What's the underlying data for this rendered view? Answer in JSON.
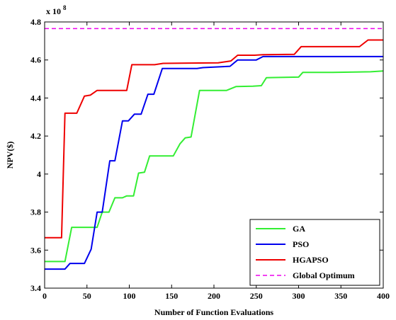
{
  "chart_data": {
    "type": "line",
    "xlabel": "Number of Function Evaluations",
    "ylabel": "NPV($)",
    "exponent_label": "x 10",
    "exponent_power": "8",
    "xlim": [
      0,
      400
    ],
    "ylim": [
      3.4,
      4.8
    ],
    "x_ticks": [
      "0",
      "50",
      "100",
      "150",
      "200",
      "250",
      "300",
      "350",
      "400"
    ],
    "y_ticks": [
      "3.4",
      "3.6",
      "3.8",
      "4",
      "4.2",
      "4.4",
      "4.6",
      "4.8"
    ],
    "legend_position": "bottom-right",
    "grid": false,
    "series": [
      {
        "name": "GA",
        "color": "#33ee33",
        "style": "solid",
        "points": [
          [
            0,
            3.54
          ],
          [
            24,
            3.54
          ],
          [
            32,
            3.72
          ],
          [
            62,
            3.72
          ],
          [
            68,
            3.8
          ],
          [
            76,
            3.8
          ],
          [
            83,
            3.875
          ],
          [
            92,
            3.875
          ],
          [
            97,
            3.885
          ],
          [
            105,
            3.885
          ],
          [
            111,
            4.005
          ],
          [
            118,
            4.01
          ],
          [
            124,
            4.095
          ],
          [
            152,
            4.095
          ],
          [
            160,
            4.16
          ],
          [
            166,
            4.19
          ],
          [
            173,
            4.195
          ],
          [
            183,
            4.44
          ],
          [
            215,
            4.44
          ],
          [
            226,
            4.46
          ],
          [
            246,
            4.462
          ],
          [
            256,
            4.465
          ],
          [
            262,
            4.507
          ],
          [
            300,
            4.51
          ],
          [
            305,
            4.535
          ],
          [
            340,
            4.535
          ],
          [
            385,
            4.538
          ],
          [
            400,
            4.542
          ]
        ]
      },
      {
        "name": "PSO",
        "color": "#0000ee",
        "style": "solid",
        "points": [
          [
            0,
            3.5
          ],
          [
            24,
            3.5
          ],
          [
            30,
            3.53
          ],
          [
            47,
            3.53
          ],
          [
            55,
            3.605
          ],
          [
            62,
            3.8
          ],
          [
            68,
            3.8
          ],
          [
            77,
            4.07
          ],
          [
            83,
            4.07
          ],
          [
            92,
            4.28
          ],
          [
            99,
            4.28
          ],
          [
            106,
            4.315
          ],
          [
            114,
            4.315
          ],
          [
            122,
            4.42
          ],
          [
            129,
            4.42
          ],
          [
            139,
            4.555
          ],
          [
            180,
            4.555
          ],
          [
            187,
            4.56
          ],
          [
            211,
            4.565
          ],
          [
            219,
            4.567
          ],
          [
            228,
            4.6
          ],
          [
            250,
            4.6
          ],
          [
            258,
            4.618
          ],
          [
            400,
            4.618
          ]
        ]
      },
      {
        "name": "HGAPSO",
        "color": "#ee0000",
        "style": "solid",
        "points": [
          [
            0,
            3.665
          ],
          [
            20,
            3.665
          ],
          [
            24,
            4.32
          ],
          [
            38,
            4.32
          ],
          [
            47,
            4.41
          ],
          [
            54,
            4.415
          ],
          [
            62,
            4.44
          ],
          [
            97,
            4.44
          ],
          [
            103,
            4.575
          ],
          [
            130,
            4.575
          ],
          [
            140,
            4.582
          ],
          [
            205,
            4.585
          ],
          [
            220,
            4.595
          ],
          [
            228,
            4.625
          ],
          [
            248,
            4.625
          ],
          [
            258,
            4.628
          ],
          [
            295,
            4.63
          ],
          [
            303,
            4.67
          ],
          [
            372,
            4.67
          ],
          [
            382,
            4.705
          ],
          [
            400,
            4.705
          ]
        ]
      },
      {
        "name": "Global Optimum",
        "color": "#ee00ee",
        "style": "dashed",
        "points": [
          [
            0,
            4.765
          ],
          [
            400,
            4.765
          ]
        ]
      }
    ]
  }
}
